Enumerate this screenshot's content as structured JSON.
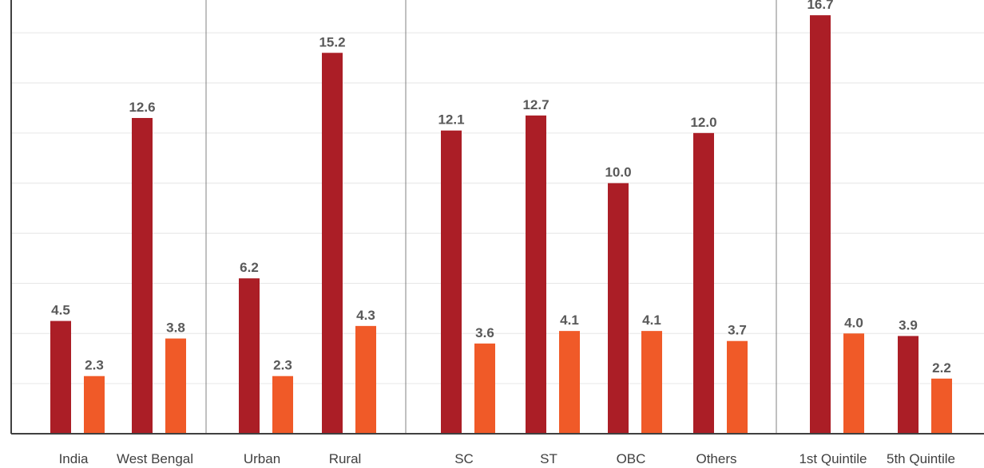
{
  "colors": {
    "series_1": "#ab1e26",
    "series_2": "#f05a28",
    "grid": "#e6e6e6",
    "axis": "#404040",
    "separator": "#808080"
  },
  "chart_data": {
    "type": "bar",
    "categories": [
      "India",
      "West Bengal",
      "Urban",
      "Rural",
      "SC",
      "ST",
      "OBC",
      "Others",
      "1st Quintile",
      "5th Quintile"
    ],
    "groups": [
      {
        "categories": [
          "India",
          "West Bengal"
        ]
      },
      {
        "categories": [
          "Urban",
          "Rural"
        ]
      },
      {
        "categories": [
          "SC",
          "ST",
          "OBC",
          "Others"
        ]
      },
      {
        "categories": [
          "1st Quintile",
          "5th Quintile"
        ]
      }
    ],
    "series": [
      {
        "values": [
          4.5,
          12.6,
          6.2,
          15.2,
          12.1,
          12.7,
          10.0,
          12.0,
          16.7,
          3.9
        ],
        "labels": [
          "4.5",
          "12.6",
          "6.2",
          "15.2",
          "12.1",
          "12.7",
          "10.0",
          "12.0",
          "16.7",
          "3.9"
        ]
      },
      {
        "values": [
          2.3,
          3.8,
          2.3,
          4.3,
          3.6,
          4.1,
          4.1,
          3.7,
          4.0,
          2.2
        ],
        "labels": [
          "2.3",
          "3.8",
          "2.3",
          "4.3",
          "3.6",
          "4.1",
          "4.1",
          "3.7",
          "4.0",
          "2.2"
        ]
      }
    ],
    "title": "",
    "xlabel": "",
    "ylabel": "",
    "ylim": [
      0,
      18
    ],
    "grid": true,
    "legend": "none"
  }
}
